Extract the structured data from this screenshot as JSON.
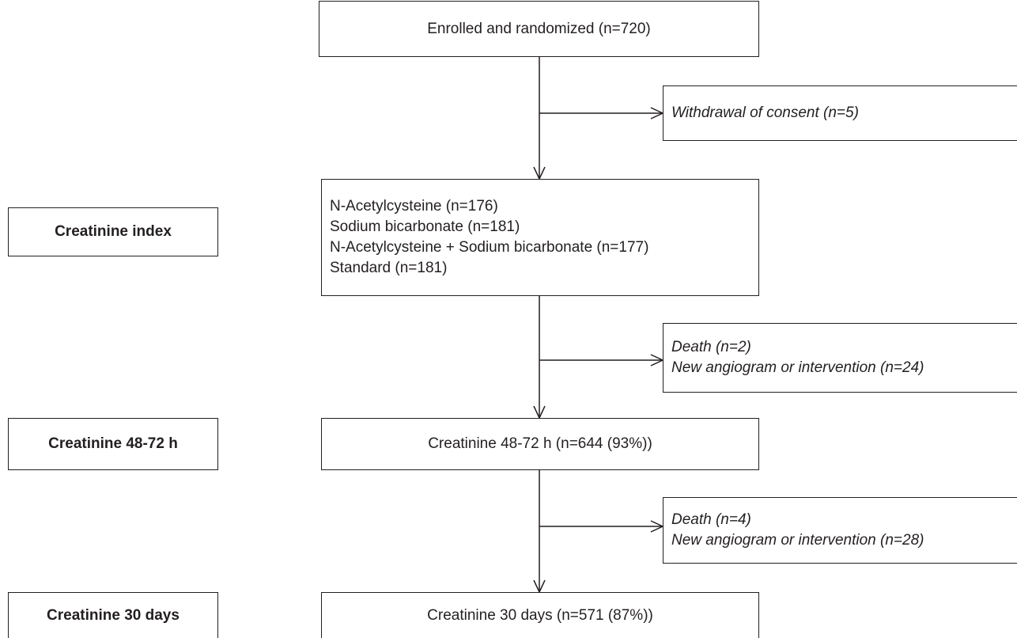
{
  "main_boxes": [
    {
      "lines": [
        "Enrolled and randomized (n=720)"
      ]
    },
    {
      "lines": [
        "N-Acetylcysteine (n=176)",
        "Sodium bicarbonate (n=181)",
        "N-Acetylcysteine + Sodium bicarbonate (n=177)",
        "Standard (n=181)"
      ]
    },
    {
      "lines": [
        "Creatinine 48-72 h (n=644 (93%))"
      ]
    },
    {
      "lines": [
        "Creatinine 30 days (n=571 (87%))"
      ]
    }
  ],
  "exclusions": [
    {
      "lines": [
        "Withdrawal of consent (n=5)"
      ]
    },
    {
      "lines": [
        "Death (n=2)",
        "New angiogram or intervention (n=24)"
      ]
    },
    {
      "lines": [
        "Death (n=4)",
        "New angiogram or intervention (n=28)"
      ]
    }
  ],
  "stages": [
    "Creatinine index",
    "Creatinine 48-72 h",
    "Creatinine 30 days"
  ]
}
